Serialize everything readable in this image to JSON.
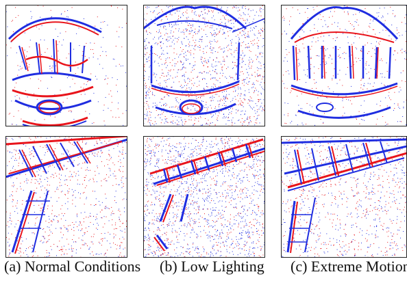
{
  "figure": {
    "colors": {
      "positive": "#e8141b",
      "negative": "#1f2de0",
      "background": "#ffffff",
      "border": "#222222"
    },
    "columns": [
      {
        "caption": "(a) Normal Conditions",
        "top_scene": "carousel-event-frame",
        "bottom_scene": "staircase-event-frame"
      },
      {
        "caption": "(b) Low Lighting",
        "top_scene": "carousel-event-frame",
        "bottom_scene": "staircase-event-frame"
      },
      {
        "caption": "(c) Extreme Motion",
        "top_scene": "carousel-event-frame",
        "bottom_scene": "staircase-event-frame"
      }
    ]
  }
}
